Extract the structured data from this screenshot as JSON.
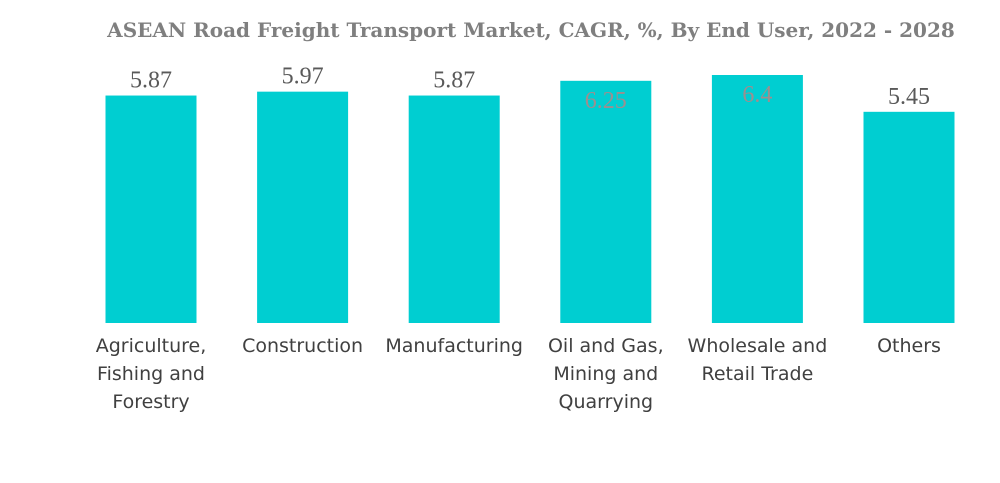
{
  "chart_data": {
    "type": "bar",
    "title": "ASEAN Road Freight Transport Market, CAGR, %, By End User, 2022 - 2028",
    "xlabel": "",
    "ylabel": "",
    "ylim": [
      0,
      6.4
    ],
    "grid": false,
    "bar_color": "#00CED1",
    "categories": [
      [
        "Agriculture,",
        "Fishing and",
        "Forestry"
      ],
      [
        "Construction"
      ],
      [
        "Manufacturing"
      ],
      [
        "Oil and Gas,",
        "Mining and",
        "Quarrying"
      ],
      [
        "Wholesale and",
        "Retail Trade"
      ],
      [
        "Others"
      ]
    ],
    "values": [
      5.87,
      5.97,
      5.87,
      6.25,
      6.4,
      5.45
    ],
    "value_labels": [
      "5.87",
      "5.97",
      "5.87",
      "6.25",
      "6.4",
      "5.45"
    ]
  }
}
